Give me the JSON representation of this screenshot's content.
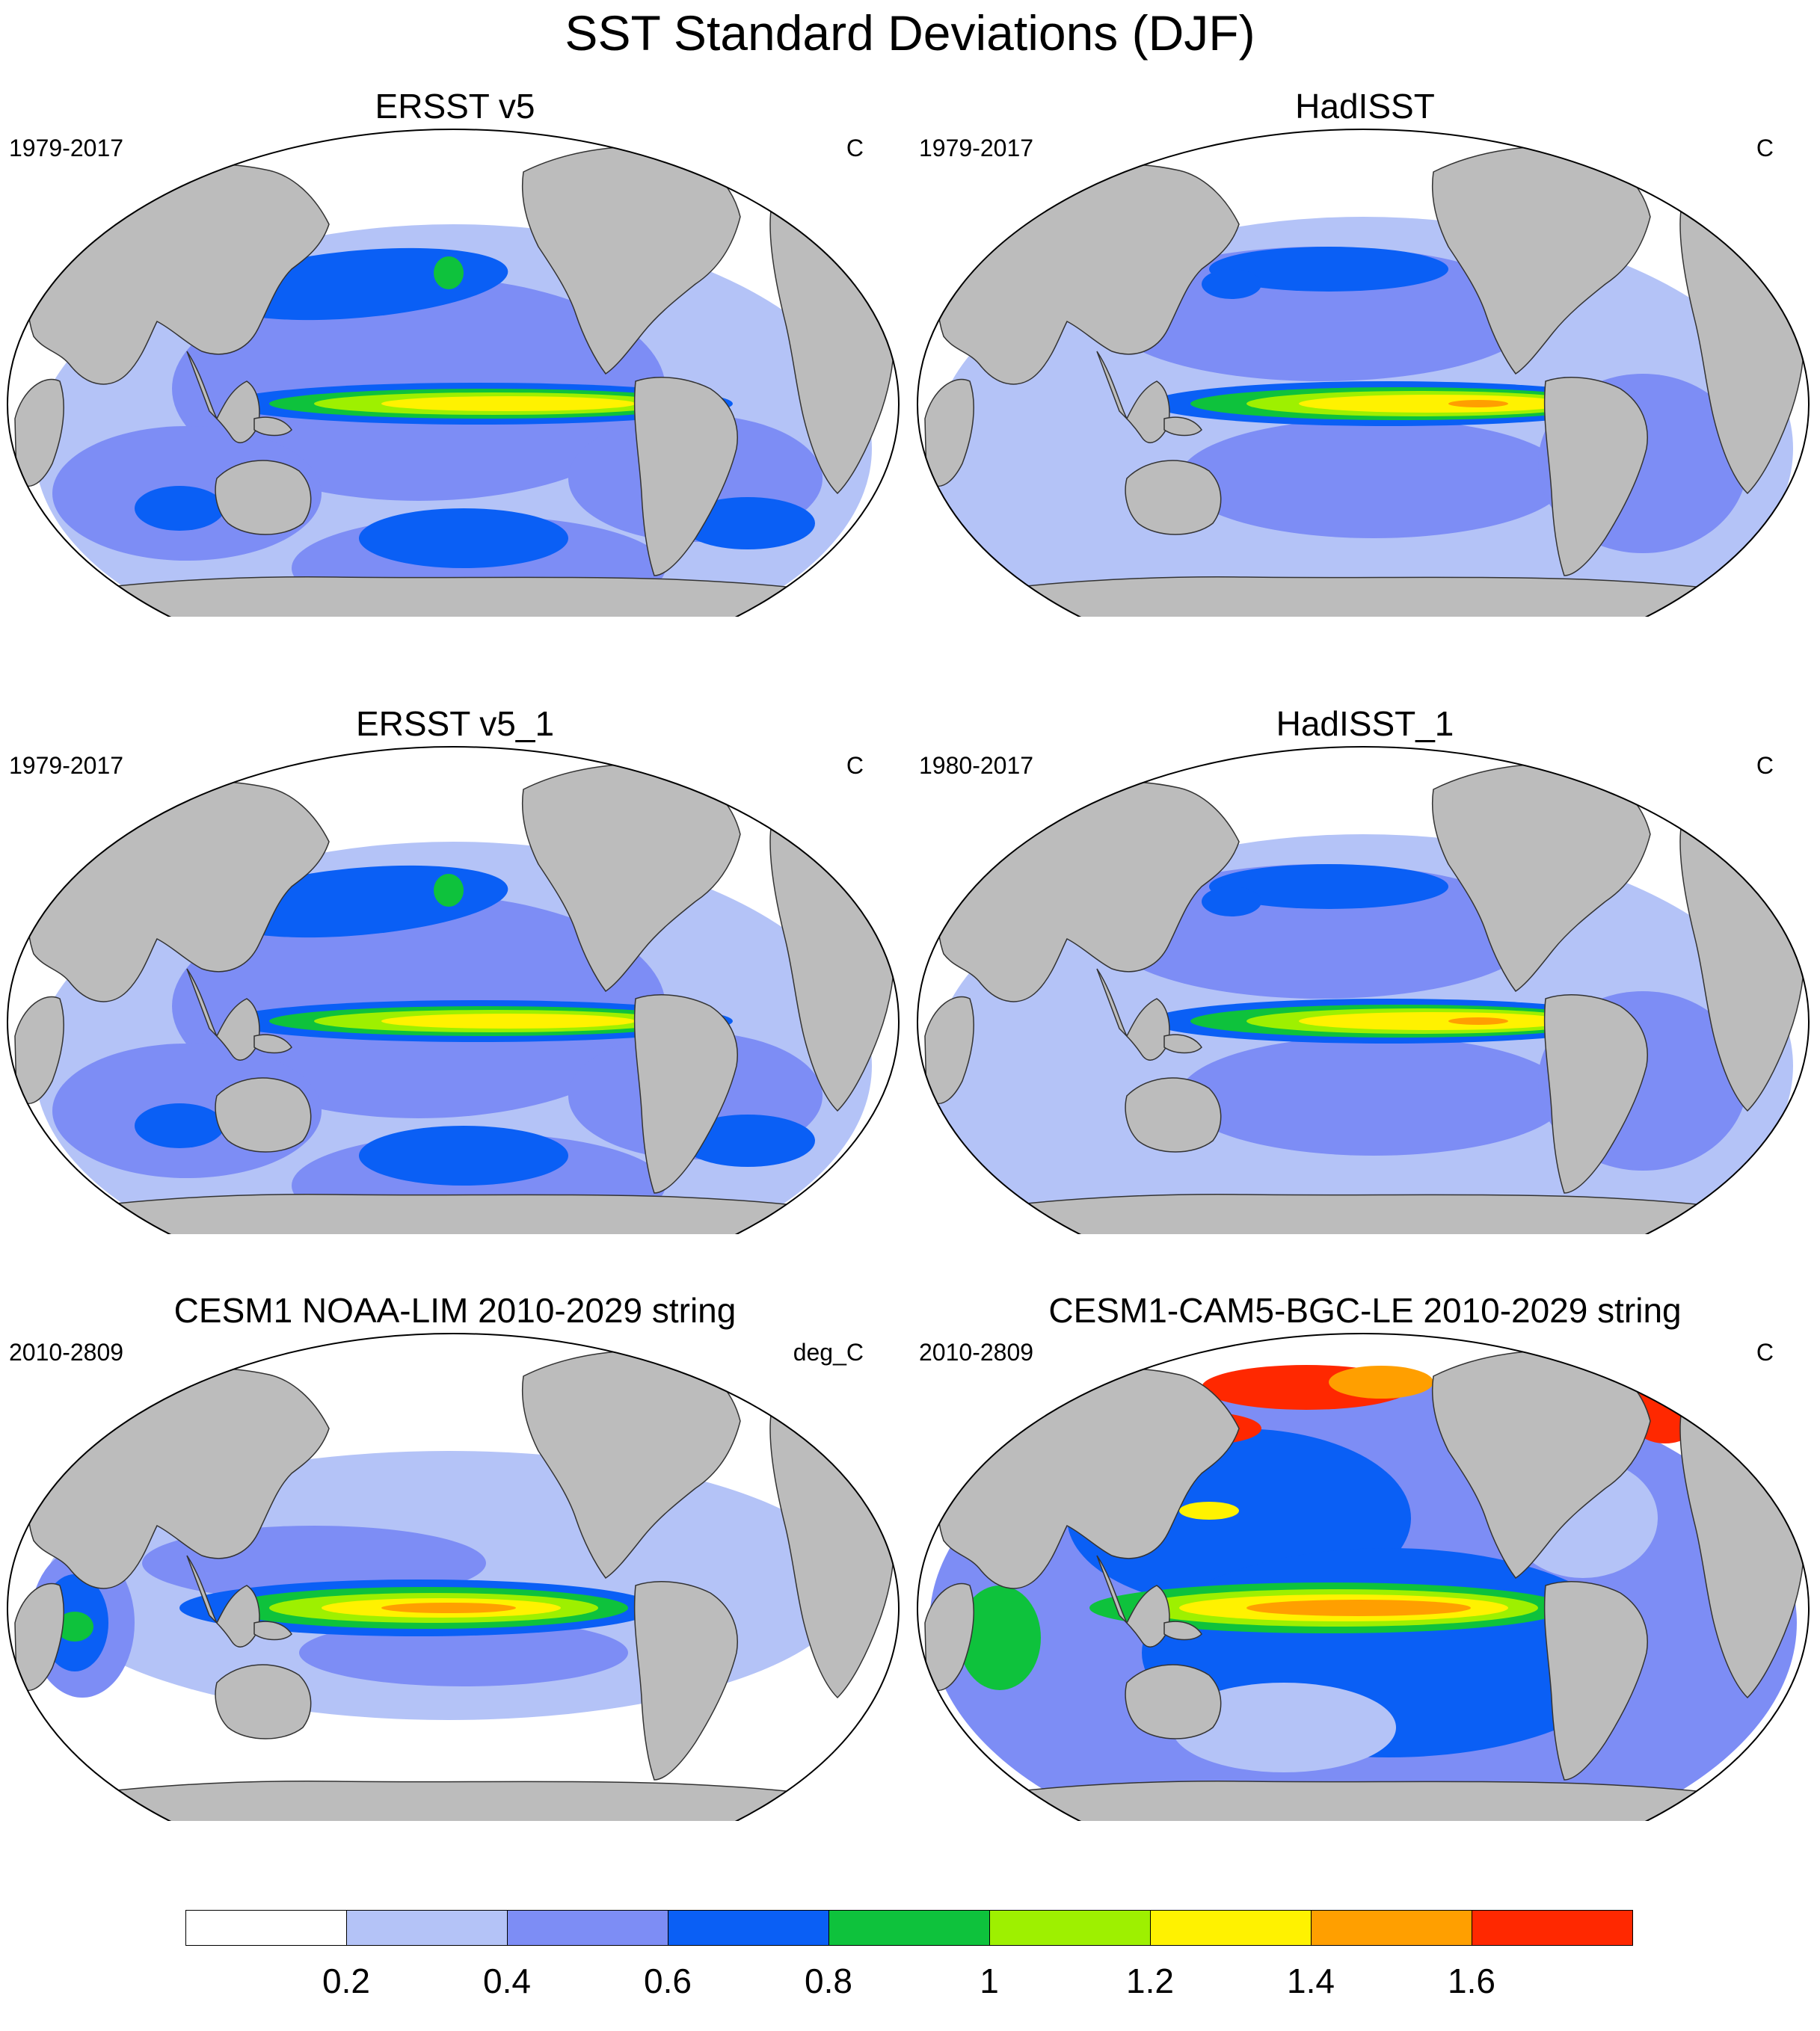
{
  "figure": {
    "title": "SST Standard Deviations (DJF)"
  },
  "panels": [
    {
      "title": "ERSST v5",
      "left_label": "1979-2017",
      "right_label": "C",
      "variant": "ersst"
    },
    {
      "title": "HadISST",
      "left_label": "1979-2017",
      "right_label": "C",
      "variant": "hadisst"
    },
    {
      "title": "ERSST v5_1",
      "left_label": "1979-2017",
      "right_label": "C",
      "variant": "ersst"
    },
    {
      "title": "HadISST_1",
      "left_label": "1980-2017",
      "right_label": "C",
      "variant": "hadisst"
    },
    {
      "title": "CESM1 NOAA-LIM 2010-2029 string",
      "left_label": "2010-2809",
      "right_label": "deg_C",
      "variant": "lim"
    },
    {
      "title": "CESM1-CAM5-BGC-LE 2010-2029 string",
      "left_label": "2010-2809",
      "right_label": "C",
      "variant": "bgc"
    }
  ],
  "colorbar": {
    "labels": [
      "0.2",
      "0.4",
      "0.6",
      "0.8",
      "1",
      "1.2",
      "1.4",
      "1.6"
    ],
    "colors": [
      "#ffffff",
      "#b4c3f7",
      "#7d8df5",
      "#0a5ff5",
      "#0ec23c",
      "#9ef000",
      "#fff200",
      "#ff9f00",
      "#ff2800"
    ]
  },
  "map_style": {
    "ocean_background": "#ffffff",
    "land_color": "#bcbcbc",
    "coast_color": "#333333"
  }
}
